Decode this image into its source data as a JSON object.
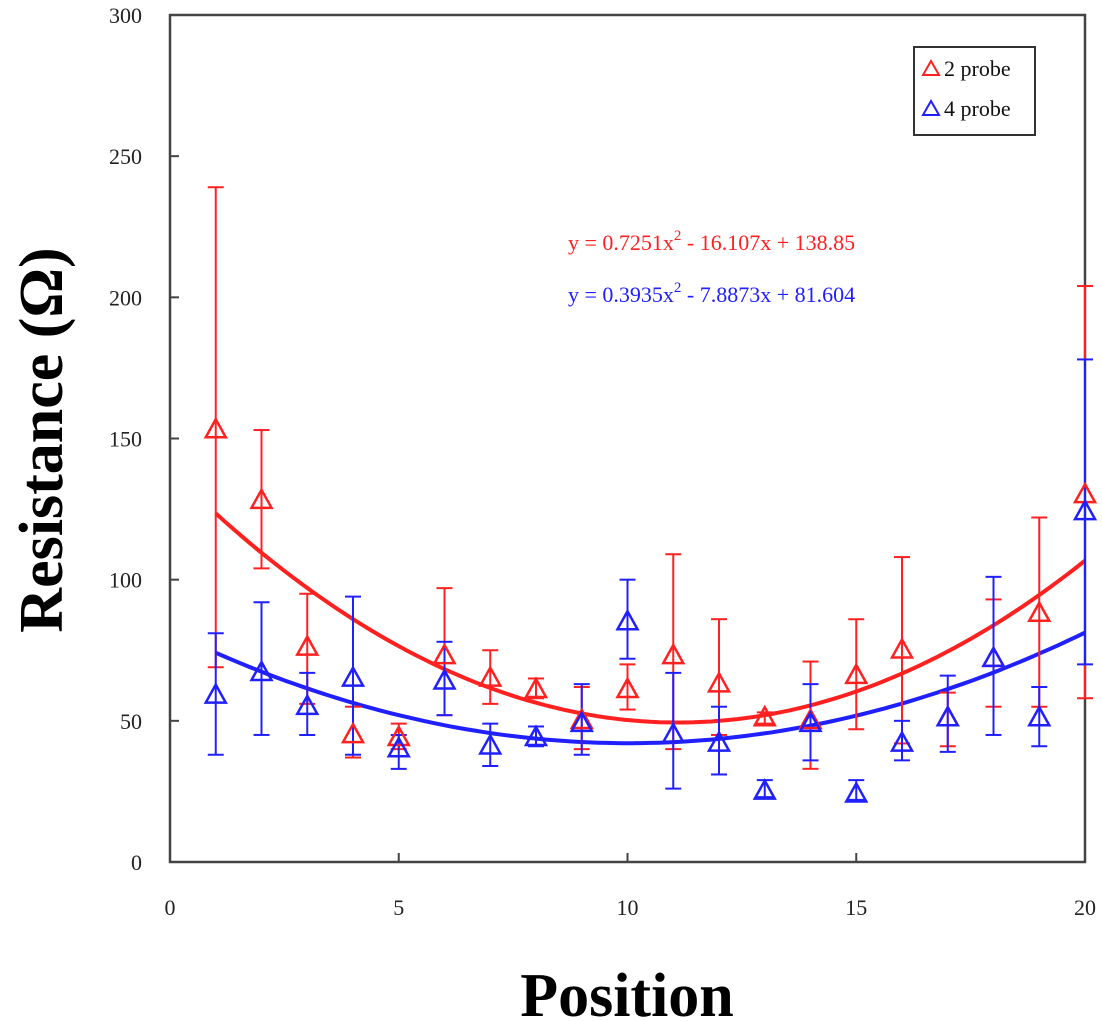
{
  "chart_data": {
    "type": "scatter",
    "title": "",
    "xlabel": "Position",
    "ylabel": "Resistance (Ω)",
    "xlim": [
      0,
      20
    ],
    "ylim": [
      0,
      300
    ],
    "xticks": [
      0,
      5,
      10,
      15,
      20
    ],
    "yticks": [
      0,
      50,
      100,
      150,
      200,
      250,
      300
    ],
    "grid": false,
    "legend_position": "top-right",
    "x": [
      1,
      2,
      3,
      4,
      5,
      6,
      7,
      8,
      9,
      10,
      11,
      12,
      13,
      14,
      15,
      16,
      17,
      18,
      19,
      20
    ],
    "series": [
      {
        "name": "2 probe",
        "color": "#ff2020",
        "marker": "open-triangle",
        "values": [
          153,
          128,
          76,
          45,
          44,
          73,
          65,
          61,
          50,
          61,
          73,
          63,
          51,
          50,
          66,
          75,
          51,
          72,
          88,
          130
        ],
        "err_upper": [
          239,
          153,
          95,
          55,
          49,
          97,
          75,
          65,
          62,
          70,
          109,
          86,
          53,
          71,
          86,
          108,
          60,
          93,
          122,
          204
        ],
        "err_lower": [
          69,
          104,
          56,
          37,
          40,
          52,
          56,
          58,
          40,
          54,
          40,
          45,
          49,
          33,
          47,
          42,
          41,
          55,
          55,
          58
        ],
        "fit": {
          "type": "polynomial-2",
          "coefficients": [
            0.7251,
            -16.107,
            138.85
          ],
          "equation_prefix": "y = 0.7251x",
          "equation_sup": "2",
          "equation_suffix": " - 16.107x + 138.85"
        }
      },
      {
        "name": "4 probe",
        "color": "#2020ff",
        "marker": "open-triangle",
        "values": [
          59,
          67,
          55,
          65,
          40,
          64,
          41,
          44,
          49,
          85,
          45,
          42,
          25,
          49,
          24,
          42,
          51,
          72,
          51,
          124
        ],
        "err_upper": [
          81,
          92,
          67,
          94,
          45,
          78,
          49,
          48,
          63,
          100,
          67,
          55,
          29,
          63,
          29,
          50,
          66,
          101,
          62,
          178
        ],
        "err_lower": [
          38,
          45,
          45,
          38,
          33,
          52,
          34,
          41,
          38,
          72,
          26,
          31,
          23,
          36,
          22,
          36,
          39,
          45,
          41,
          70
        ],
        "fit": {
          "type": "polynomial-2",
          "coefficients": [
            0.3935,
            -7.8873,
            81.604
          ],
          "equation_prefix": "y = 0.3935x",
          "equation_sup": "2",
          "equation_suffix": " - 7.8873x + 81.604"
        }
      }
    ]
  }
}
